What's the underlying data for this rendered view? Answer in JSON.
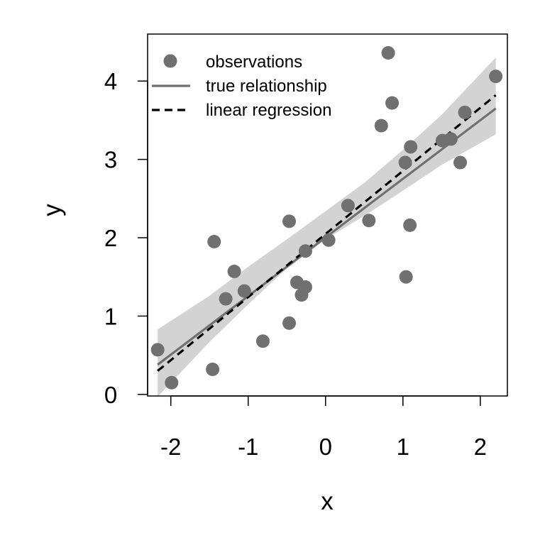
{
  "chart_data": {
    "type": "scatter",
    "xlabel": "x",
    "ylabel": "y",
    "xlim": [
      -2.3,
      2.35
    ],
    "ylim": [
      -0.02,
      4.6
    ],
    "xticks": [
      -2,
      -1,
      0,
      1,
      2
    ],
    "xtick_labels": [
      "-2",
      "-1",
      "0",
      "1",
      "2"
    ],
    "yticks": [
      0,
      1,
      2,
      3,
      4
    ],
    "ytick_labels": [
      "0",
      "1",
      "2",
      "3",
      "4"
    ],
    "grid": false,
    "legend_position": "top-left",
    "series": [
      {
        "name": "observations",
        "kind": "points",
        "color": "#707070",
        "points": [
          {
            "x": -2.17,
            "y": 0.57
          },
          {
            "x": -1.99,
            "y": 0.15
          },
          {
            "x": -1.46,
            "y": 0.32
          },
          {
            "x": -1.44,
            "y": 1.95
          },
          {
            "x": -1.29,
            "y": 1.22
          },
          {
            "x": -1.18,
            "y": 1.57
          },
          {
            "x": -1.05,
            "y": 1.32
          },
          {
            "x": -0.81,
            "y": 0.68
          },
          {
            "x": -0.47,
            "y": 0.91
          },
          {
            "x": -0.47,
            "y": 2.21
          },
          {
            "x": -0.37,
            "y": 1.43
          },
          {
            "x": -0.31,
            "y": 1.27
          },
          {
            "x": -0.26,
            "y": 1.37
          },
          {
            "x": -0.26,
            "y": 1.83
          },
          {
            "x": 0.04,
            "y": 1.97
          },
          {
            "x": 0.29,
            "y": 2.41
          },
          {
            "x": 0.56,
            "y": 2.22
          },
          {
            "x": 0.72,
            "y": 3.43
          },
          {
            "x": 0.81,
            "y": 4.36
          },
          {
            "x": 0.86,
            "y": 3.72
          },
          {
            "x": 1.03,
            "y": 2.96
          },
          {
            "x": 1.04,
            "y": 1.5
          },
          {
            "x": 1.09,
            "y": 2.16
          },
          {
            "x": 1.1,
            "y": 3.16
          },
          {
            "x": 1.51,
            "y": 3.24
          },
          {
            "x": 1.62,
            "y": 3.26
          },
          {
            "x": 1.74,
            "y": 2.96
          },
          {
            "x": 1.8,
            "y": 3.6
          },
          {
            "x": 2.2,
            "y": 4.06
          }
        ]
      },
      {
        "name": "true relationship",
        "kind": "line",
        "color": "#707070",
        "dash": "solid",
        "x": [
          -2.17,
          2.2
        ],
        "y": [
          0.38,
          3.65
        ]
      },
      {
        "name": "linear regression",
        "kind": "line",
        "color": "#000000",
        "dash": "dashed",
        "x": [
          -2.17,
          2.2
        ],
        "y": [
          0.3,
          3.82
        ]
      }
    ],
    "confidence_band": {
      "color": "#d3d3d3",
      "x": [
        -2.17,
        -1.5,
        -1.0,
        -0.5,
        0.0,
        0.5,
        1.0,
        1.5,
        2.2
      ],
      "lower": [
        -0.03,
        0.67,
        1.15,
        1.61,
        1.98,
        2.28,
        2.6,
        2.93,
        3.32
      ],
      "upper": [
        0.83,
        1.26,
        1.63,
        1.98,
        2.34,
        2.7,
        3.12,
        3.57,
        4.3
      ]
    }
  }
}
